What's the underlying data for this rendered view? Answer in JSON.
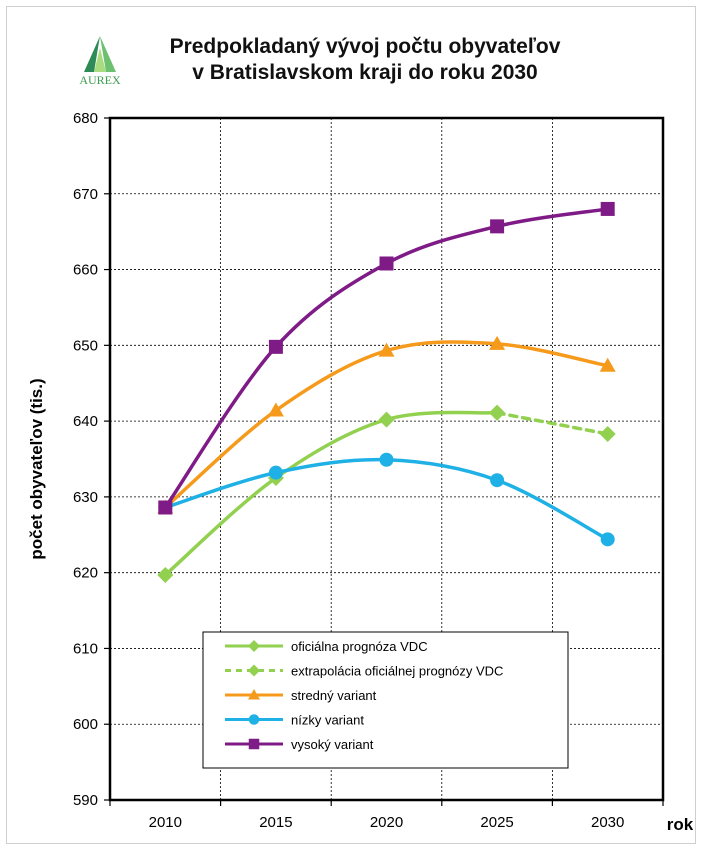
{
  "chart_data": {
    "type": "line",
    "title_lines": [
      "Predpokladaný vývoj počtu obyvateľov",
      "v Bratislavskom kraji do roku 2030"
    ],
    "xlabel": "rok",
    "ylabel": "počet obyvateľov (tis.)",
    "ylim": [
      590,
      680
    ],
    "yticks": [
      590,
      600,
      610,
      620,
      630,
      640,
      650,
      660,
      670,
      680
    ],
    "x": [
      2010,
      2015,
      2020,
      2025,
      2030
    ],
    "grid": true,
    "legend_position": "bottom-center",
    "series": [
      {
        "name": "oficiálna prognóza VDC",
        "x": [
          2010,
          2015,
          2020,
          2025
        ],
        "values": [
          619.7,
          632.5,
          640.2,
          641.1
        ],
        "color": "#92D050",
        "marker": "diamond",
        "dash": false
      },
      {
        "name": "extrapolácia oficiálnej prognózy VDC",
        "x": [
          2025,
          2030
        ],
        "values": [
          641.1,
          638.3
        ],
        "color": "#92D050",
        "marker": "diamond",
        "dash": true
      },
      {
        "name": "stredný variant",
        "x": [
          2010,
          2015,
          2020,
          2025,
          2030
        ],
        "values": [
          628.6,
          641.4,
          649.3,
          650.2,
          647.3
        ],
        "color": "#F59A1B",
        "marker": "triangle",
        "dash": false
      },
      {
        "name": "nízky variant",
        "x": [
          2010,
          2015,
          2020,
          2025,
          2030
        ],
        "values": [
          628.6,
          633.2,
          634.9,
          632.2,
          624.4
        ],
        "color": "#1FB1E6",
        "marker": "circle",
        "dash": false
      },
      {
        "name": "vysoký variant",
        "x": [
          2010,
          2015,
          2020,
          2025,
          2030
        ],
        "values": [
          628.6,
          649.8,
          660.8,
          665.7,
          668.0
        ],
        "color": "#7F1B86",
        "marker": "square",
        "dash": false
      }
    ]
  },
  "logo": {
    "text": "AUREX",
    "color": "#3E9B4E"
  }
}
